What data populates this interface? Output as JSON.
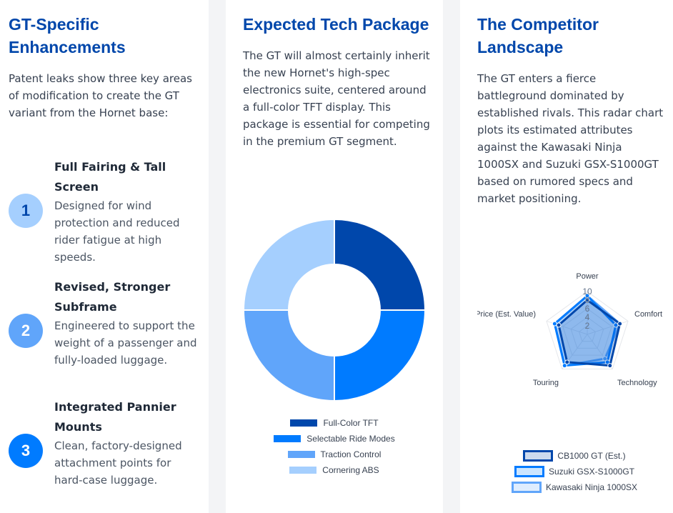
{
  "col1": {
    "title": "GT-Specific Enhancements",
    "desc": "Patent leaks show three key areas of modification to create the GT variant from the Hornet base:",
    "features": [
      {
        "num": "1",
        "title": "Full Fairing & Tall Screen",
        "desc": "Designed for wind protection and reduced rider fatigue at high speeds.",
        "bg": "#a5cffe",
        "fg": "#0047ab"
      },
      {
        "num": "2",
        "title": "Revised, Stronger Subframe",
        "desc": "Engineered to support the weight of a passenger and fully-loaded luggage.",
        "bg": "#60a5fa",
        "fg": "#ffffff"
      },
      {
        "num": "3",
        "title": "Integrated Pannier Mounts",
        "desc": "Clean, factory-designed attachment points for hard-case luggage.",
        "bg": "#007bff",
        "fg": "#ffffff"
      }
    ]
  },
  "col2": {
    "title": "Expected Tech Package",
    "desc": "The GT will almost certainly inherit the new Hornet's high-spec electronics suite, centered around a full-color TFT display. This package is essential for competing in the premium GT segment."
  },
  "col3": {
    "title": "The Competitor Landscape",
    "desc": "The GT enters a fierce battleground dominated by established rivals. This radar chart plots its estimated attributes against the Kawasaki Ninja 1000SX and Suzuki GSX-S1000GT based on rumored specs and market positioning."
  },
  "chart_data": [
    {
      "type": "pie",
      "variant": "doughnut",
      "categories": [
        "Full-Color TFT",
        "Selectable Ride Modes",
        "Traction Control",
        "Cornering ABS"
      ],
      "values": [
        25,
        25,
        25,
        25
      ],
      "colors": [
        "#0047ab",
        "#007bff",
        "#60a5fa",
        "#a5cffe"
      ],
      "legend": "bottom"
    },
    {
      "type": "radar",
      "axes": [
        "Power",
        "Comfort",
        "Technology",
        "Touring",
        "Price (Est. Value)"
      ],
      "ticks": [
        "2",
        "4",
        "6",
        "8",
        "10"
      ],
      "range": [
        0,
        10
      ],
      "series": [
        {
          "name": "CB1000 GT (Est.)",
          "values": [
            8,
            8,
            9,
            8,
            7
          ],
          "color": "#0047ab",
          "fill": "rgba(0,71,171,0.2)"
        },
        {
          "name": "Suzuki GSX-S1000GT",
          "values": [
            9,
            7,
            8,
            9,
            8
          ],
          "color": "#007bff",
          "fill": "rgba(0,123,255,0.2)"
        },
        {
          "name": "Kawasaki Ninja 1000SX",
          "values": [
            9,
            8,
            7,
            9,
            8
          ],
          "color": "#60a5fa",
          "fill": "rgba(96,165,250,0.2)"
        }
      ],
      "legend": "bottom"
    }
  ]
}
